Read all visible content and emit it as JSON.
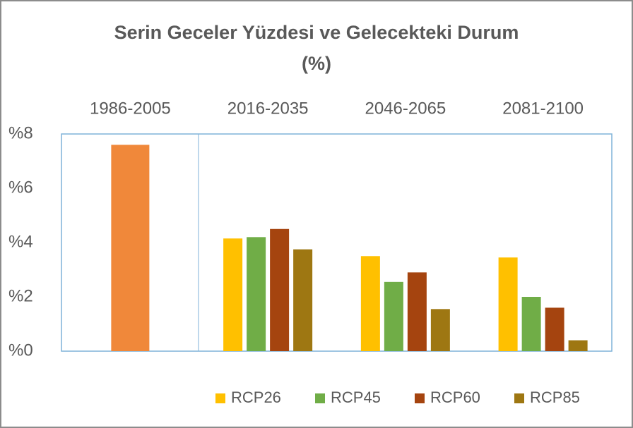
{
  "chart_data": {
    "type": "bar",
    "title": [
      "Serin Geceler Yüzdesi ve Gelecekteki Durum",
      "(%)"
    ],
    "categories": [
      "1986-2005",
      "2016-2035",
      "2046-2065",
      "2081-2100"
    ],
    "series": [
      {
        "color": "#f0883a",
        "values": [
          7.6,
          null,
          null,
          null
        ]
      },
      {
        "name": "RCP26",
        "color": "#ffc000",
        "values": [
          null,
          4.15,
          3.5,
          3.45
        ]
      },
      {
        "name": "RCP45",
        "color": "#70ad47",
        "values": [
          null,
          4.2,
          2.55,
          2.0
        ]
      },
      {
        "name": "RCP60",
        "color": "#a5440f",
        "values": [
          null,
          4.5,
          2.9,
          1.6
        ]
      },
      {
        "name": "RCP85",
        "color": "#9e7712",
        "values": [
          null,
          3.75,
          1.55,
          0.4
        ]
      }
    ],
    "ylim": [
      0,
      8
    ],
    "yticks": [
      {
        "value": 0,
        "label": "%0"
      },
      {
        "value": 2,
        "label": "%2"
      },
      {
        "value": 4,
        "label": "%4"
      },
      {
        "value": 6,
        "label": "%6"
      },
      {
        "value": 8,
        "label": "%8"
      }
    ],
    "legend": "bottom"
  }
}
